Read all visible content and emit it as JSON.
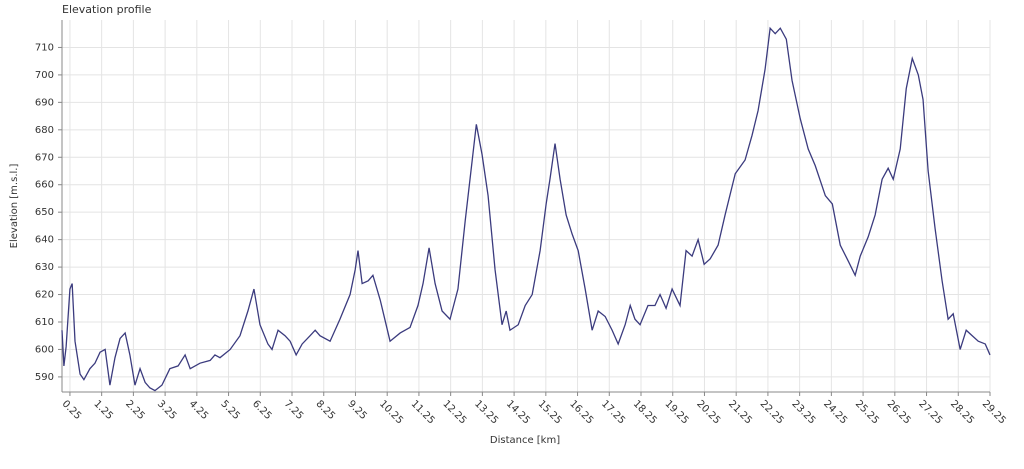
{
  "chart_data": {
    "type": "line",
    "title": "Elevation profile",
    "x_label": "Distance [km]",
    "y_label": "Elevation [m.s.l.]",
    "grid": true,
    "xlim": [
      0,
      29.25
    ],
    "ylim": [
      584.5,
      720
    ],
    "xticks": [
      0.25,
      1.25,
      2.25,
      3.25,
      4.25,
      5.25,
      6.25,
      7.25,
      8.25,
      9.25,
      10.25,
      11.25,
      12.25,
      13.25,
      14.25,
      15.25,
      16.25,
      17.25,
      18.25,
      19.25,
      20.25,
      21.25,
      22.25,
      23.25,
      24.25,
      25.25,
      26.25,
      27.25,
      28.25,
      29.25
    ],
    "yticks": [
      590,
      600,
      610,
      620,
      630,
      640,
      650,
      660,
      670,
      680,
      690,
      700,
      710
    ],
    "series": [
      {
        "color": "#3b3b7e",
        "x": [
          0,
          0.06,
          0.13,
          0.25,
          0.32,
          0.41,
          0.57,
          0.69,
          0.88,
          1.04,
          1.2,
          1.36,
          1.51,
          1.67,
          1.83,
          1.99,
          2.14,
          2.3,
          2.46,
          2.62,
          2.77,
          2.93,
          3.15,
          3.4,
          3.66,
          3.88,
          4.04,
          4.35,
          4.67,
          4.82,
          4.98,
          5.3,
          5.61,
          5.86,
          6.05,
          6.24,
          6.49,
          6.62,
          6.81,
          7.03,
          7.19,
          7.38,
          7.57,
          7.82,
          7.98,
          8.13,
          8.45,
          8.76,
          9.08,
          9.24,
          9.33,
          9.46,
          9.65,
          9.8,
          10.03,
          10.34,
          10.66,
          10.97,
          11.22,
          11.38,
          11.57,
          11.76,
          11.98,
          12.23,
          12.48,
          12.71,
          12.93,
          13.06,
          13.24,
          13.43,
          13.65,
          13.87,
          14.0,
          14.12,
          14.38,
          14.6,
          14.82,
          15.07,
          15.26,
          15.38,
          15.54,
          15.7,
          15.89,
          16.08,
          16.27,
          16.49,
          16.71,
          16.9,
          17.12,
          17.34,
          17.53,
          17.75,
          17.91,
          18.06,
          18.22,
          18.47,
          18.69,
          18.85,
          19.04,
          19.23,
          19.48,
          19.67,
          19.86,
          20.05,
          20.24,
          20.43,
          20.68,
          20.9,
          21.22,
          21.53,
          21.75,
          21.94,
          22.16,
          22.32,
          22.48,
          22.64,
          22.83,
          23.01,
          23.27,
          23.52,
          23.74,
          24.06,
          24.28,
          24.53,
          24.79,
          25.0,
          25.16,
          25.41,
          25.63,
          25.85,
          26.04,
          26.2,
          26.42,
          26.61,
          26.8,
          26.99,
          27.14,
          27.3,
          27.52,
          27.74,
          27.93,
          28.09,
          28.31,
          28.5,
          28.69,
          28.88,
          29.1,
          29.25
        ],
        "values": [
          607,
          594,
          601,
          622,
          624,
          603,
          591,
          589,
          593,
          595,
          599,
          600,
          587,
          597,
          604,
          606,
          598,
          587,
          593,
          588,
          586,
          585,
          587,
          593,
          594,
          598,
          593,
          595,
          596,
          598,
          597,
          600,
          605,
          614,
          622,
          609,
          602,
          600,
          607,
          605,
          603,
          598,
          602,
          605,
          607,
          605,
          603,
          611,
          620,
          629,
          636,
          624,
          625,
          627,
          618,
          603,
          606,
          608,
          616,
          624,
          637,
          624,
          614,
          611,
          622,
          647,
          669,
          682,
          671,
          656,
          629,
          609,
          614,
          607,
          609,
          616,
          620,
          636,
          653,
          662,
          675,
          662,
          649,
          642,
          636,
          622,
          607,
          614,
          612,
          607,
          602,
          609,
          616,
          611,
          609,
          616,
          616,
          620,
          615,
          622,
          616,
          636,
          634,
          640,
          631,
          633,
          638,
          649,
          664,
          669,
          678,
          687,
          702,
          717,
          715,
          717,
          713,
          698,
          684,
          673,
          667,
          656,
          653,
          638,
          632,
          627,
          634,
          641,
          649,
          662,
          666,
          662,
          673,
          695,
          706,
          700,
          691,
          665,
          644,
          625,
          611,
          613,
          600,
          607,
          605,
          603,
          602,
          598
        ]
      }
    ]
  }
}
